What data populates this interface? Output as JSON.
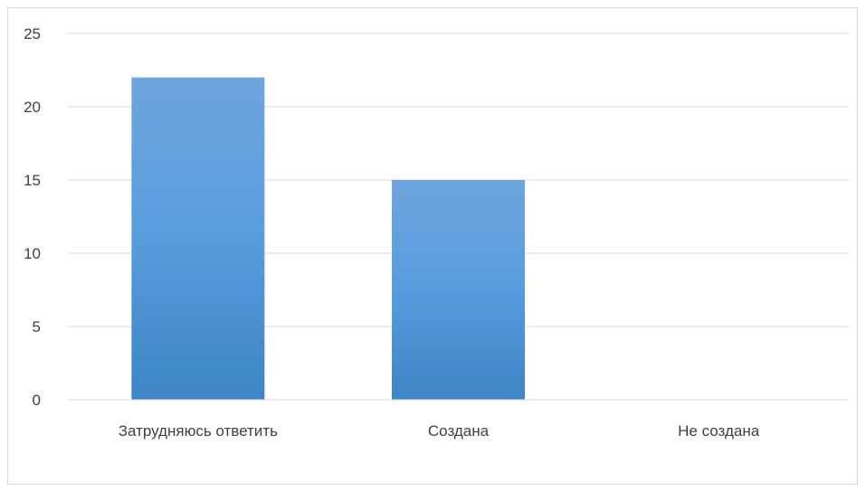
{
  "chart_data": {
    "type": "bar",
    "title": "",
    "xlabel": "",
    "ylabel": "",
    "categories": [
      "Затрудняюсь ответить",
      "Создана",
      "Не создана"
    ],
    "values": [
      22,
      15,
      0
    ],
    "ylim": [
      0,
      25
    ],
    "yticks": [
      0,
      5,
      10,
      15,
      20,
      25
    ],
    "grid": true,
    "legend": "none",
    "bar_color": "#4a90d9",
    "bar_color_top": "#6fa5dc",
    "bar_color_bottom": "#3d85c6"
  }
}
